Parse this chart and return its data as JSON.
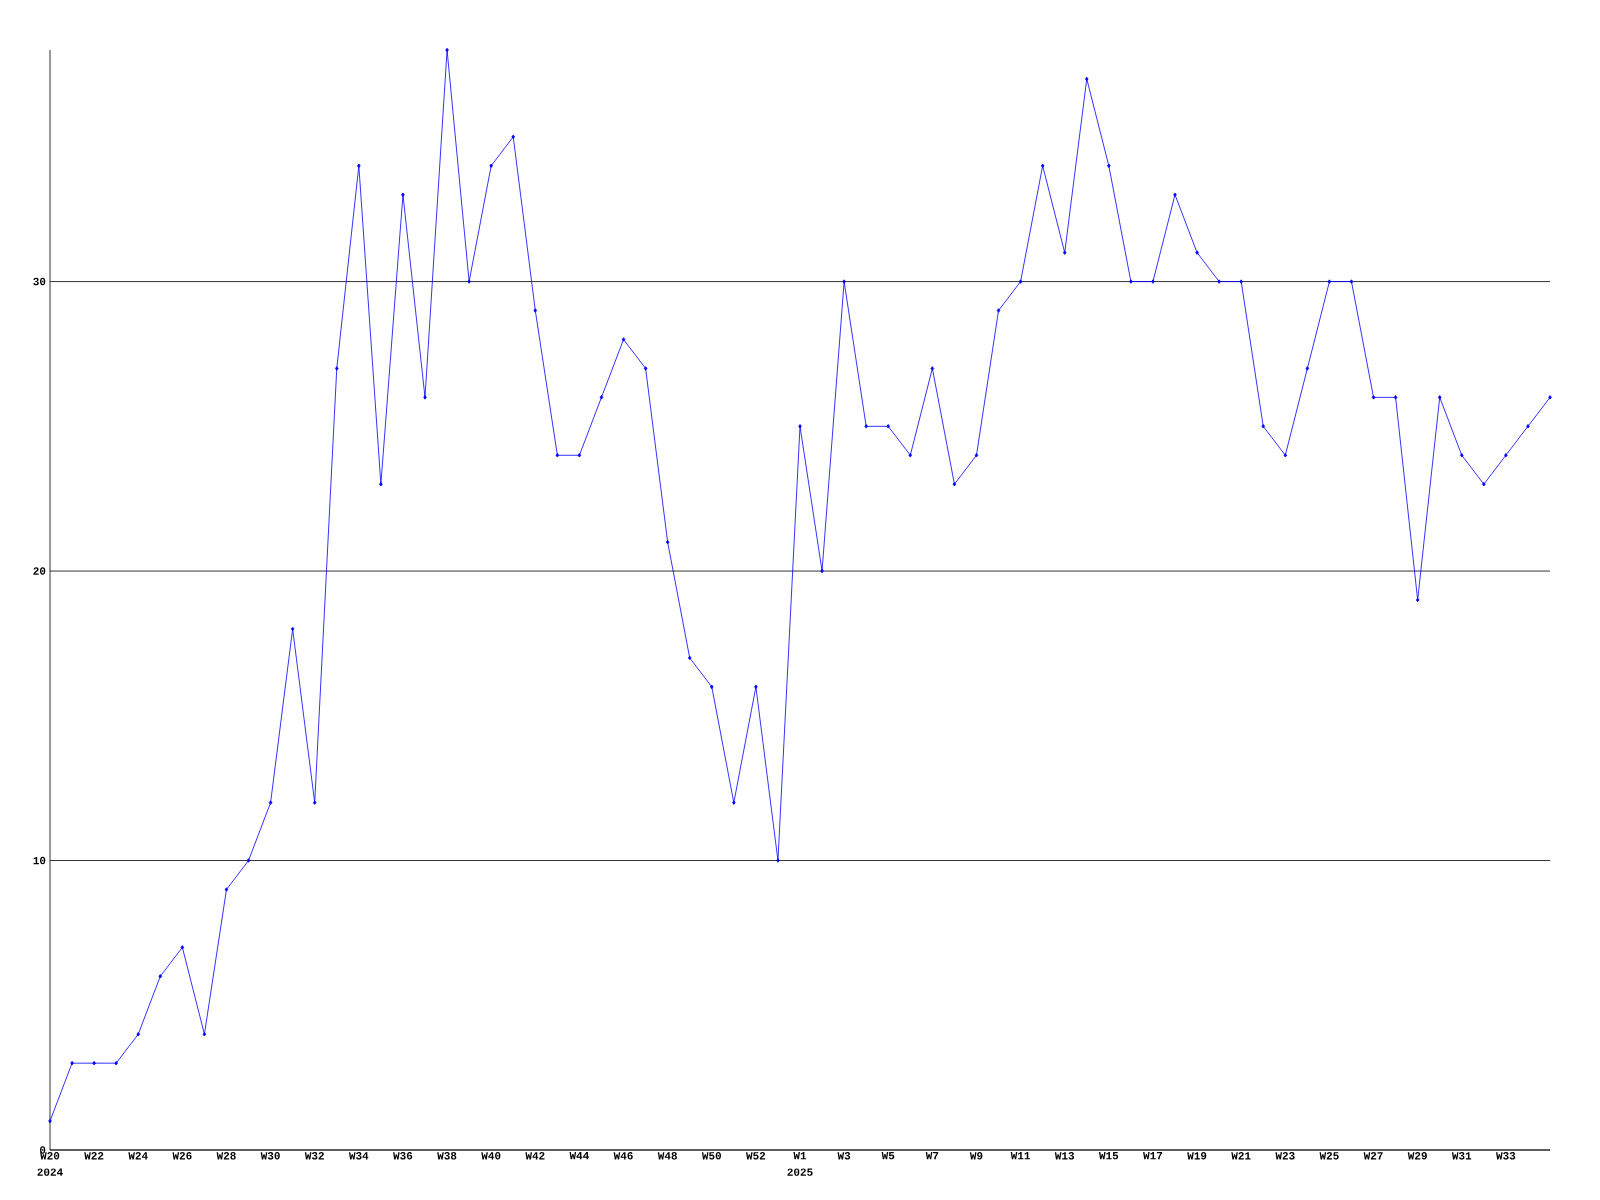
{
  "chart_data": {
    "type": "line",
    "categories": [
      "W20",
      null,
      "W22",
      null,
      "W24",
      null,
      "W26",
      null,
      "W28",
      null,
      "W30",
      null,
      "W32",
      null,
      "W34",
      null,
      "W36",
      null,
      "W38",
      null,
      "W40",
      null,
      "W42",
      null,
      "W44",
      null,
      "W46",
      null,
      "W48",
      null,
      "W50",
      null,
      "W52",
      null,
      "W1",
      null,
      "W3",
      null,
      "W5",
      null,
      "W7",
      null,
      "W9",
      null,
      "W11",
      null,
      "W13",
      null,
      "W15",
      null,
      "W17",
      null,
      "W19",
      null,
      "W21",
      null,
      "W23",
      null,
      "W25",
      null,
      "W27",
      null,
      "W29",
      null,
      "W31",
      null,
      "W33",
      null,
      null
    ],
    "values": [
      1,
      3,
      3,
      3,
      4,
      6,
      7,
      4,
      9,
      10,
      12,
      18,
      12,
      27,
      34,
      23,
      33,
      26,
      38,
      30,
      34,
      35,
      29,
      24,
      24,
      26,
      28,
      27,
      21,
      17,
      16,
      12,
      16,
      10,
      25,
      20,
      30,
      25,
      25,
      24,
      27,
      23,
      24,
      29,
      30,
      34,
      31,
      37,
      34,
      30,
      30,
      33,
      31,
      30,
      30,
      25,
      24,
      27,
      30,
      30,
      26,
      26,
      19,
      26,
      24,
      23,
      24,
      25,
      26
    ],
    "color": "#0000ff",
    "ylim": [
      0,
      38
    ],
    "yticks": [
      0,
      10,
      20,
      30
    ],
    "grid": "y",
    "marker": "diamond",
    "annotations": [
      "2024",
      "2025"
    ]
  }
}
